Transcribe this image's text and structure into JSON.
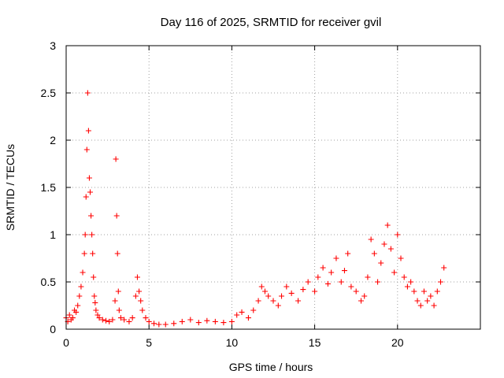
{
  "chart_data": {
    "type": "scatter",
    "title": "Day 116 of 2025, SRMTID for receiver gvil",
    "xlabel": "GPS time / hours",
    "ylabel": "SRMTID / TECUs",
    "xlim": [
      0,
      25
    ],
    "ylim": [
      0,
      3
    ],
    "xticks": [
      0,
      5,
      10,
      15,
      20
    ],
    "xtick_labels": [
      "0",
      "5",
      "10",
      "15",
      "20"
    ],
    "yticks": [
      0,
      0.5,
      1,
      1.5,
      2,
      2.5,
      3
    ],
    "ytick_labels": [
      "0",
      "0.5",
      "1",
      "1.5",
      "2",
      "2.5",
      "3"
    ],
    "grid": true,
    "marker": "plus",
    "color": "#ff0000",
    "series": [
      {
        "name": "SRMTID",
        "x": [
          0.0,
          0.1,
          0.2,
          0.3,
          0.4,
          0.5,
          0.6,
          0.7,
          0.8,
          0.9,
          1.0,
          1.1,
          1.15,
          1.2,
          1.25,
          1.3,
          1.35,
          1.4,
          1.45,
          1.5,
          1.55,
          1.6,
          1.65,
          1.7,
          1.75,
          1.8,
          1.9,
          2.0,
          2.2,
          2.4,
          2.6,
          2.8,
          2.95,
          3.0,
          3.05,
          3.1,
          3.15,
          3.2,
          3.3,
          3.5,
          3.8,
          4.0,
          4.2,
          4.3,
          4.4,
          4.5,
          4.6,
          4.8,
          5.0,
          5.3,
          5.6,
          6.0,
          6.5,
          7.0,
          7.5,
          8.0,
          8.5,
          9.0,
          9.5,
          10.0,
          10.3,
          10.6,
          11.0,
          11.3,
          11.6,
          11.8,
          12.0,
          12.2,
          12.5,
          12.8,
          13.0,
          13.3,
          13.6,
          14.0,
          14.3,
          14.6,
          15.0,
          15.2,
          15.5,
          15.8,
          16.0,
          16.3,
          16.6,
          16.8,
          17.0,
          17.2,
          17.5,
          17.8,
          18.0,
          18.2,
          18.4,
          18.6,
          18.8,
          19.0,
          19.2,
          19.4,
          19.6,
          19.8,
          20.0,
          20.2,
          20.4,
          20.6,
          20.8,
          21.0,
          21.2,
          21.4,
          21.6,
          21.8,
          22.0,
          22.2,
          22.4,
          22.6,
          22.8
        ],
        "values": [
          0.12,
          0.08,
          0.15,
          0.1,
          0.12,
          0.2,
          0.18,
          0.25,
          0.35,
          0.45,
          0.6,
          0.8,
          1.0,
          1.4,
          1.9,
          2.5,
          2.1,
          1.6,
          1.45,
          1.2,
          1.0,
          0.8,
          0.55,
          0.35,
          0.28,
          0.2,
          0.15,
          0.12,
          0.1,
          0.09,
          0.08,
          0.1,
          0.3,
          1.8,
          1.2,
          0.8,
          0.4,
          0.2,
          0.12,
          0.1,
          0.08,
          0.12,
          0.35,
          0.55,
          0.4,
          0.3,
          0.2,
          0.12,
          0.08,
          0.06,
          0.05,
          0.05,
          0.06,
          0.08,
          0.1,
          0.07,
          0.09,
          0.08,
          0.07,
          0.08,
          0.15,
          0.18,
          0.12,
          0.2,
          0.3,
          0.45,
          0.4,
          0.35,
          0.3,
          0.25,
          0.35,
          0.45,
          0.38,
          0.3,
          0.42,
          0.5,
          0.4,
          0.55,
          0.65,
          0.48,
          0.6,
          0.75,
          0.5,
          0.62,
          0.8,
          0.45,
          0.4,
          0.3,
          0.35,
          0.55,
          0.95,
          0.8,
          0.5,
          0.7,
          0.9,
          1.1,
          0.85,
          0.6,
          1.0,
          0.75,
          0.55,
          0.45,
          0.5,
          0.4,
          0.3,
          0.25,
          0.4,
          0.3,
          0.35,
          0.25,
          0.4,
          0.5,
          0.65
        ]
      }
    ]
  }
}
